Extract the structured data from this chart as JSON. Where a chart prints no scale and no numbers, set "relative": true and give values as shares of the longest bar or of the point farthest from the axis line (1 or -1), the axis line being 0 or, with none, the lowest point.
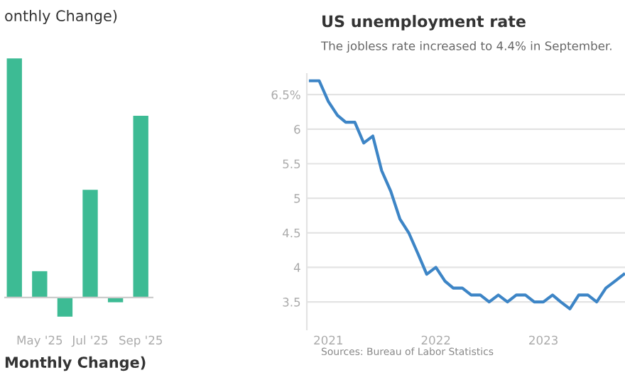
{
  "chart_data": [
    {
      "type": "bar",
      "title": "onthly Change)",
      "relative": true,
      "categories": [
        null,
        "May '25",
        null,
        "Jul '25",
        null,
        "Sep '25"
      ],
      "values": [
        1,
        0.11,
        -0.08,
        0.45,
        -0.02,
        0.76
      ],
      "color": "#3dbb94",
      "annotations": [
        "Monthly Change)"
      ]
    },
    {
      "type": "line",
      "title": "US unemployment rate",
      "subtitle": "The jobless rate increased to 4.4% in September.",
      "annotations": [
        "Sources: Bureau of Labor Statistics"
      ],
      "x": [
        "2020-11",
        "2020-12",
        "2021-01",
        "2021-02",
        "2021-03",
        "2021-04",
        "2021-05",
        "2021-06",
        "2021-07",
        "2021-08",
        "2021-09",
        "2021-10",
        "2021-11",
        "2021-12",
        "2022-01",
        "2022-02",
        "2022-03",
        "2022-04",
        "2022-05",
        "2022-06",
        "2022-07",
        "2022-08",
        "2022-09",
        "2022-10",
        "2022-11",
        "2022-12",
        "2023-01",
        "2023-02",
        "2023-03",
        "2023-04",
        "2023-05",
        "2023-06",
        "2023-07",
        "2023-08",
        "2023-09",
        "2023-10"
      ],
      "series": [
        {
          "color": "#3d85c6",
          "values": [
            6.7,
            6.7,
            6.4,
            6.2,
            6.1,
            6.1,
            5.8,
            5.9,
            5.4,
            5.1,
            4.7,
            4.5,
            4.2,
            3.9,
            4.0,
            3.8,
            3.7,
            3.7,
            3.6,
            3.6,
            3.5,
            3.6,
            3.5,
            3.6,
            3.6,
            3.5,
            3.5,
            3.6,
            3.5,
            3.4,
            3.6,
            3.6,
            3.5,
            3.7,
            3.8,
            3.9
          ]
        }
      ],
      "xlim": [
        "2020-10-20",
        "2023-10-05"
      ],
      "xticks": [
        {
          "value": "2021-01-01",
          "label": "2021"
        },
        {
          "value": "2022-01-01",
          "label": "2022"
        },
        {
          "value": "2023-01-01",
          "label": "2023"
        }
      ],
      "ylim": [
        3.1,
        6.8
      ],
      "yticks": [
        3.5,
        4,
        4.5,
        5,
        5.5,
        6,
        {
          "value": 6.5,
          "label": "6.5%"
        }
      ],
      "grid": "y",
      "line_style": "solid"
    }
  ]
}
